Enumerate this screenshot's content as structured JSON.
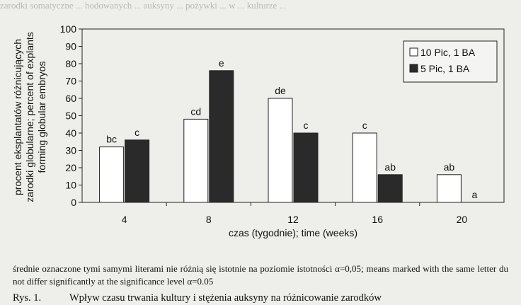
{
  "chart_data": {
    "type": "bar",
    "categories": [
      "4",
      "8",
      "12",
      "16",
      "20"
    ],
    "series": [
      {
        "name": "10 Pic, 1 BA",
        "values": [
          32,
          48,
          60,
          40,
          16
        ],
        "labels": [
          "bc",
          "cd",
          "de",
          "c",
          "ab"
        ],
        "fill": "#ffffff"
      },
      {
        "name": "5 Pic, 1 BA",
        "values": [
          36,
          76,
          40,
          16,
          0
        ],
        "labels": [
          "c",
          "e",
          "c",
          "ab",
          "a"
        ],
        "fill": "#2a2a2a"
      }
    ],
    "ylim": [
      0,
      100
    ],
    "yticks": [
      0,
      10,
      20,
      30,
      40,
      50,
      60,
      70,
      80,
      90,
      100
    ],
    "ylabel_lines": [
      "procent eksplantatów różnicujących",
      "zarodki globularne; percent of explants",
      "forming globular embryos"
    ],
    "xlabel": "czas (tygodnie); time (weeks)",
    "legend_position": "right",
    "grid": false
  },
  "caption": {
    "text": "średnie oznaczone tymi samymi literami nie różnią się istotnie na poziomie istotności α=0,05; means marked with the same letter du not differ significantly at the significance level α=0.05"
  },
  "figure_caption": {
    "number": "Rys. 1.",
    "text": "Wpływ czasu trwania kultury i stężenia auksyny na różnicowanie zarodków"
  },
  "bleed_through": "zarodki somatyczne ... hodowanych ... auksyny ... pożywki ... w ... kulturze ..."
}
